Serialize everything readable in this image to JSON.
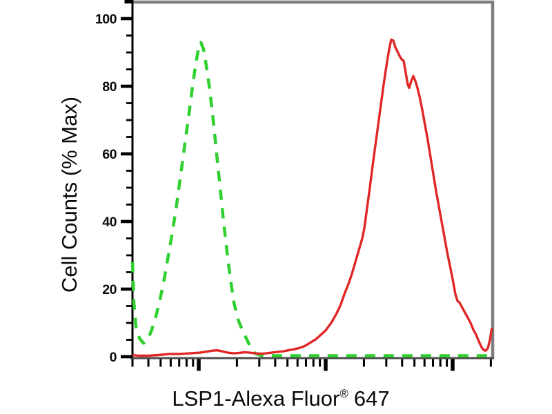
{
  "figure": {
    "background": "#ffffff",
    "x_axis_title": {
      "main": "LSP1-Alexa Fluor",
      "registered_mark": "®",
      "suffix": "647",
      "full": "LSP1-Alexa Fluor® 647"
    },
    "y_axis_title": "Cell Counts (% Max)"
  },
  "colors": {
    "curve_green": "#2fd02f",
    "curve_red": "#e12626",
    "axis_black": "#000000",
    "border_gray": "#7e7e7e",
    "baseline_gray": "#4d4d4d",
    "text": "#0a0a0a"
  },
  "chart_data": {
    "type": "line",
    "subtype": "flow-cytometry-overlay-histogram",
    "title": "",
    "xlabel": "LSP1-Alexa Fluor® 647",
    "ylabel": "Cell Counts (% Max)",
    "ylim": [
      0,
      100
    ],
    "yticks": [
      0,
      20,
      40,
      60,
      80,
      100
    ],
    "y_minor_tick_step": 5,
    "grid": false,
    "legend": "none",
    "x_axis": {
      "scale": "log",
      "tick_labels_shown": false,
      "major_tick_positions": [
        0.1843,
        0.5374,
        0.8906
      ],
      "minor_tick_positions": [
        0,
        0.0442,
        0.0783,
        0.1063,
        0.13,
        0.1505,
        0.1685,
        0.2906,
        0.3528,
        0.397,
        0.4311,
        0.4591,
        0.4827,
        0.5033,
        0.5213,
        0.6438,
        0.706,
        0.7501,
        0.7843,
        0.8123,
        0.8359,
        0.8564,
        0.8745,
        0.9969
      ]
    },
    "series": [
      {
        "name": "green-dashed-control",
        "color": "#2fd02f",
        "line_style": "dashed",
        "peak_percent_max": 93,
        "points": [
          [
            0,
            28
          ],
          [
            0.0038,
            16
          ],
          [
            0.0096,
            9
          ],
          [
            0.0192,
            5.5
          ],
          [
            0.0307,
            4
          ],
          [
            0.0422,
            5
          ],
          [
            0.0537,
            8
          ],
          [
            0.0653,
            12
          ],
          [
            0.0768,
            17
          ],
          [
            0.0883,
            23
          ],
          [
            0.0998,
            30
          ],
          [
            0.1113,
            37
          ],
          [
            0.1229,
            45
          ],
          [
            0.1344,
            54
          ],
          [
            0.1459,
            63
          ],
          [
            0.1574,
            72
          ],
          [
            0.167,
            80
          ],
          [
            0.1766,
            87
          ],
          [
            0.1843,
            91.5
          ],
          [
            0.19,
            93
          ],
          [
            0.1977,
            91
          ],
          [
            0.2054,
            86
          ],
          [
            0.215,
            79
          ],
          [
            0.2246,
            70
          ],
          [
            0.2342,
            60
          ],
          [
            0.2438,
            50
          ],
          [
            0.2534,
            40
          ],
          [
            0.263,
            31
          ],
          [
            0.2726,
            23
          ],
          [
            0.2822,
            16
          ],
          [
            0.2937,
            11
          ],
          [
            0.3071,
            7.5
          ],
          [
            0.3186,
            5
          ],
          [
            0.3301,
            2.4
          ],
          [
            0.3417,
            1
          ],
          [
            0.357,
            0.4
          ],
          [
            0.3801,
            0.3
          ],
          [
            0.4952,
            0.3
          ],
          [
            0.668,
            0.3
          ],
          [
            0.8407,
            0.3
          ],
          [
            1,
            0.3
          ]
        ]
      },
      {
        "name": "red-solid-lsp1",
        "color": "#e12626",
        "line_style": "solid",
        "peak_percent_max": 94,
        "points": [
          [
            0,
            0.5
          ],
          [
            0.0154,
            0.3
          ],
          [
            0.0441,
            0.3
          ],
          [
            0.0729,
            0.5
          ],
          [
            0.1017,
            0.8
          ],
          [
            0.1305,
            0.8
          ],
          [
            0.1593,
            1.0
          ],
          [
            0.1881,
            1.2
          ],
          [
            0.2073,
            1.5
          ],
          [
            0.2226,
            1.8
          ],
          [
            0.2361,
            1.9
          ],
          [
            0.2495,
            1.6
          ],
          [
            0.2649,
            1.2
          ],
          [
            0.2802,
            1.0
          ],
          [
            0.2956,
            1.1
          ],
          [
            0.311,
            1.3
          ],
          [
            0.3263,
            1.2
          ],
          [
            0.3417,
            1.0
          ],
          [
            0.357,
            0.9
          ],
          [
            0.3724,
            1.0
          ],
          [
            0.3877,
            1.2
          ],
          [
            0.4031,
            1.4
          ],
          [
            0.4184,
            1.6
          ],
          [
            0.4338,
            1.9
          ],
          [
            0.4491,
            2.2
          ],
          [
            0.4645,
            2.6
          ],
          [
            0.4798,
            3.2
          ],
          [
            0.4952,
            4.2
          ],
          [
            0.5106,
            5.2
          ],
          [
            0.524,
            6.5
          ],
          [
            0.5374,
            7.8
          ],
          [
            0.5528,
            10
          ],
          [
            0.5662,
            12.5
          ],
          [
            0.5777,
            15
          ],
          [
            0.5912,
            19
          ],
          [
            0.6008,
            21.5
          ],
          [
            0.6104,
            24.5
          ],
          [
            0.62,
            28
          ],
          [
            0.6296,
            31.5
          ],
          [
            0.6392,
            35
          ],
          [
            0.6449,
            38
          ],
          [
            0.6526,
            44
          ],
          [
            0.6603,
            50
          ],
          [
            0.668,
            56.5
          ],
          [
            0.6756,
            62.5
          ],
          [
            0.6833,
            68.5
          ],
          [
            0.691,
            74.5
          ],
          [
            0.6987,
            80.5
          ],
          [
            0.7064,
            86
          ],
          [
            0.714,
            91
          ],
          [
            0.7198,
            93.8
          ],
          [
            0.7255,
            93.5
          ],
          [
            0.7313,
            91.5
          ],
          [
            0.7371,
            90.3
          ],
          [
            0.7428,
            89
          ],
          [
            0.7486,
            88
          ],
          [
            0.7543,
            87.5
          ],
          [
            0.7601,
            84
          ],
          [
            0.7658,
            80.5
          ],
          [
            0.7697,
            79.5
          ],
          [
            0.7754,
            81.5
          ],
          [
            0.7812,
            83
          ],
          [
            0.787,
            81.5
          ],
          [
            0.7927,
            79.5
          ],
          [
            0.7985,
            77
          ],
          [
            0.8061,
            73
          ],
          [
            0.8138,
            68.5
          ],
          [
            0.8215,
            64
          ],
          [
            0.8292,
            59
          ],
          [
            0.8369,
            54
          ],
          [
            0.8445,
            49
          ],
          [
            0.8522,
            44.5
          ],
          [
            0.8599,
            40
          ],
          [
            0.8676,
            35.5
          ],
          [
            0.8753,
            31
          ],
          [
            0.8829,
            27
          ],
          [
            0.8906,
            23
          ],
          [
            0.8983,
            18.5
          ],
          [
            0.9041,
            16.5
          ],
          [
            0.9098,
            16
          ],
          [
            0.9175,
            14.5
          ],
          [
            0.9252,
            13
          ],
          [
            0.9329,
            11.5
          ],
          [
            0.9405,
            10
          ],
          [
            0.9482,
            8
          ],
          [
            0.9559,
            6.5
          ],
          [
            0.9636,
            4.5
          ],
          [
            0.9712,
            2.8
          ],
          [
            0.977,
            2
          ],
          [
            0.9827,
            1.8
          ],
          [
            0.9885,
            2.5
          ],
          [
            0.9942,
            5
          ],
          [
            0.9981,
            7.5
          ],
          [
            1,
            8.5
          ]
        ]
      }
    ]
  }
}
